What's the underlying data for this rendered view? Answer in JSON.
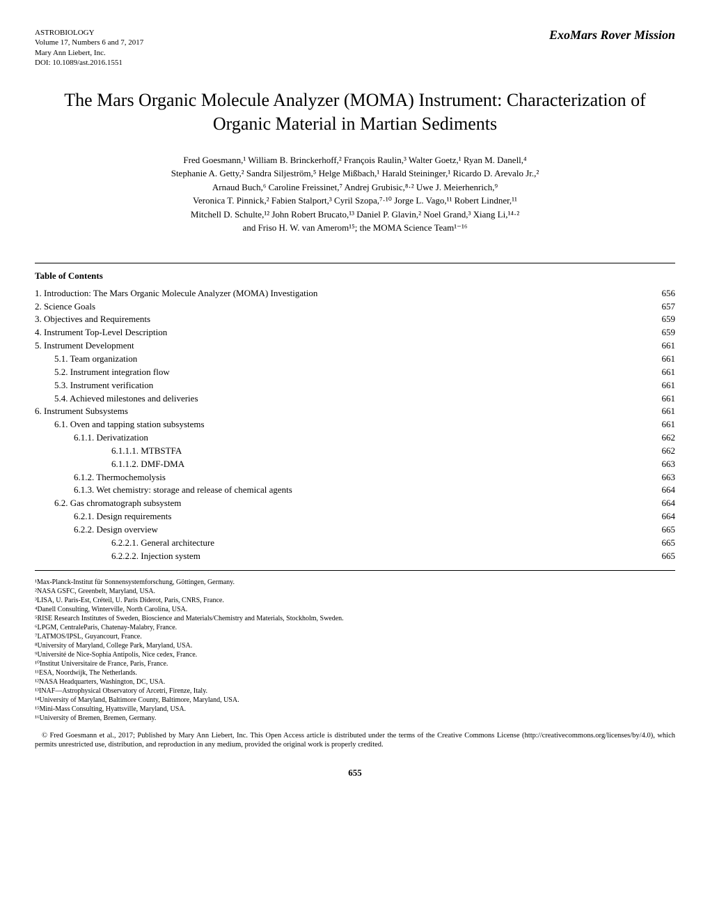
{
  "header": {
    "journal_name": "ASTROBIOLOGY",
    "volume": "Volume 17, Numbers 6 and 7, 2017",
    "publisher": "Mary Ann Liebert, Inc.",
    "doi": "DOI: 10.1089/ast.2016.1551",
    "section": "ExoMars Rover Mission"
  },
  "title": "The Mars Organic Molecule Analyzer (MOMA) Instrument: Characterization of Organic Material in Martian Sediments",
  "authors_line1": "Fred Goesmann,¹ William B. Brinckerhoff,² François Raulin,³ Walter Goetz,¹ Ryan M. Danell,⁴",
  "authors_line2": "Stephanie A. Getty,² Sandra Siljeström,⁵ Helge Mißbach,¹ Harald Steininger,¹ Ricardo D. Arevalo Jr.,²",
  "authors_line3": "Arnaud Buch,⁶ Caroline Freissinet,⁷ Andrej Grubisic,⁸·² Uwe J. Meierhenrich,⁹",
  "authors_line4": "Veronica T. Pinnick,² Fabien Stalport,³ Cyril Szopa,⁷·¹⁰ Jorge L. Vago,¹¹ Robert Lindner,¹¹",
  "authors_line5": "Mitchell D. Schulte,¹² John Robert Brucato,¹³ Daniel P. Glavin,² Noel Grand,³ Xiang Li,¹⁴·²",
  "authors_line6": "and Friso H. W. van Amerom¹⁵; the MOMA Science Team¹⁻¹⁶",
  "toc_heading": "Table of Contents",
  "toc": [
    {
      "label": "1. Introduction: The Mars Organic Molecule Analyzer (MOMA) Investigation",
      "page": "656",
      "indent": 0
    },
    {
      "label": "2. Science Goals",
      "page": "657",
      "indent": 0
    },
    {
      "label": "3. Objectives and Requirements",
      "page": "659",
      "indent": 0
    },
    {
      "label": "4. Instrument Top-Level Description",
      "page": "659",
      "indent": 0
    },
    {
      "label": "5. Instrument Development",
      "page": "661",
      "indent": 0
    },
    {
      "label": "5.1. Team organization",
      "page": "661",
      "indent": 1
    },
    {
      "label": "5.2. Instrument integration flow",
      "page": "661",
      "indent": 1
    },
    {
      "label": "5.3. Instrument verification",
      "page": "661",
      "indent": 1
    },
    {
      "label": "5.4. Achieved milestones and deliveries",
      "page": "661",
      "indent": 1
    },
    {
      "label": "6. Instrument Subsystems",
      "page": "661",
      "indent": 0
    },
    {
      "label": "6.1. Oven and tapping station subsystems",
      "page": "661",
      "indent": 1
    },
    {
      "label": "6.1.1. Derivatization",
      "page": "662",
      "indent": 2
    },
    {
      "label": "6.1.1.1. MTBSTFA",
      "page": "662",
      "indent": 3
    },
    {
      "label": "6.1.1.2. DMF-DMA",
      "page": "663",
      "indent": 3
    },
    {
      "label": "6.1.2. Thermochemolysis",
      "page": "663",
      "indent": 2
    },
    {
      "label": "6.1.3. Wet chemistry: storage and release of chemical agents",
      "page": "664",
      "indent": 2
    },
    {
      "label": "6.2. Gas chromatograph subsystem",
      "page": "664",
      "indent": 1
    },
    {
      "label": "6.2.1. Design requirements",
      "page": "664",
      "indent": 2
    },
    {
      "label": "6.2.2. Design overview",
      "page": "665",
      "indent": 2
    },
    {
      "label": "6.2.2.1. General architecture",
      "page": "665",
      "indent": 3
    },
    {
      "label": "6.2.2.2. Injection system",
      "page": "665",
      "indent": 3
    }
  ],
  "affiliations": [
    "¹Max-Planck-Institut für Sonnensystemforschung, Göttingen, Germany.",
    "²NASA GSFC, Greenbelt, Maryland, USA.",
    "³LISA, U. Paris-Est, Créteil, U. Paris Diderot, Paris, CNRS, France.",
    "⁴Danell Consulting, Winterville, North Carolina, USA.",
    "⁵RISE Research Institutes of Sweden, Bioscience and Materials/Chemistry and Materials, Stockholm, Sweden.",
    "⁶LPGM, CentraleParis, Chatenay-Malabry, France.",
    "⁷LATMOS/IPSL, Guyancourt, France.",
    "⁸University of Maryland, College Park, Maryland, USA.",
    "⁹Université de Nice-Sophia Antipolis, Nice cedex, France.",
    "¹⁰Institut Universitaire de France, Paris, France.",
    "¹¹ESA, Noordwijk, The Netherlands.",
    "¹²NASA Headquarters, Washington, DC, USA.",
    "¹³INAF—Astrophysical Observatory of Arcetri, Firenze, Italy.",
    "¹⁴University of Maryland, Baltimore County, Baltimore, Maryland, USA.",
    "¹⁵Mini-Mass Consulting, Hyattsville, Maryland, USA.",
    "¹⁶University of Bremen, Bremen, Germany."
  ],
  "copyright": "© Fred Goesmann et al., 2017; Published by Mary Ann Liebert, Inc. This Open Access article is distributed under the terms of the Creative Commons License (http://creativecommons.org/licenses/by/4.0), which permits unrestricted use, distribution, and reproduction in any medium, provided the original work is properly credited.",
  "page_number": "655"
}
